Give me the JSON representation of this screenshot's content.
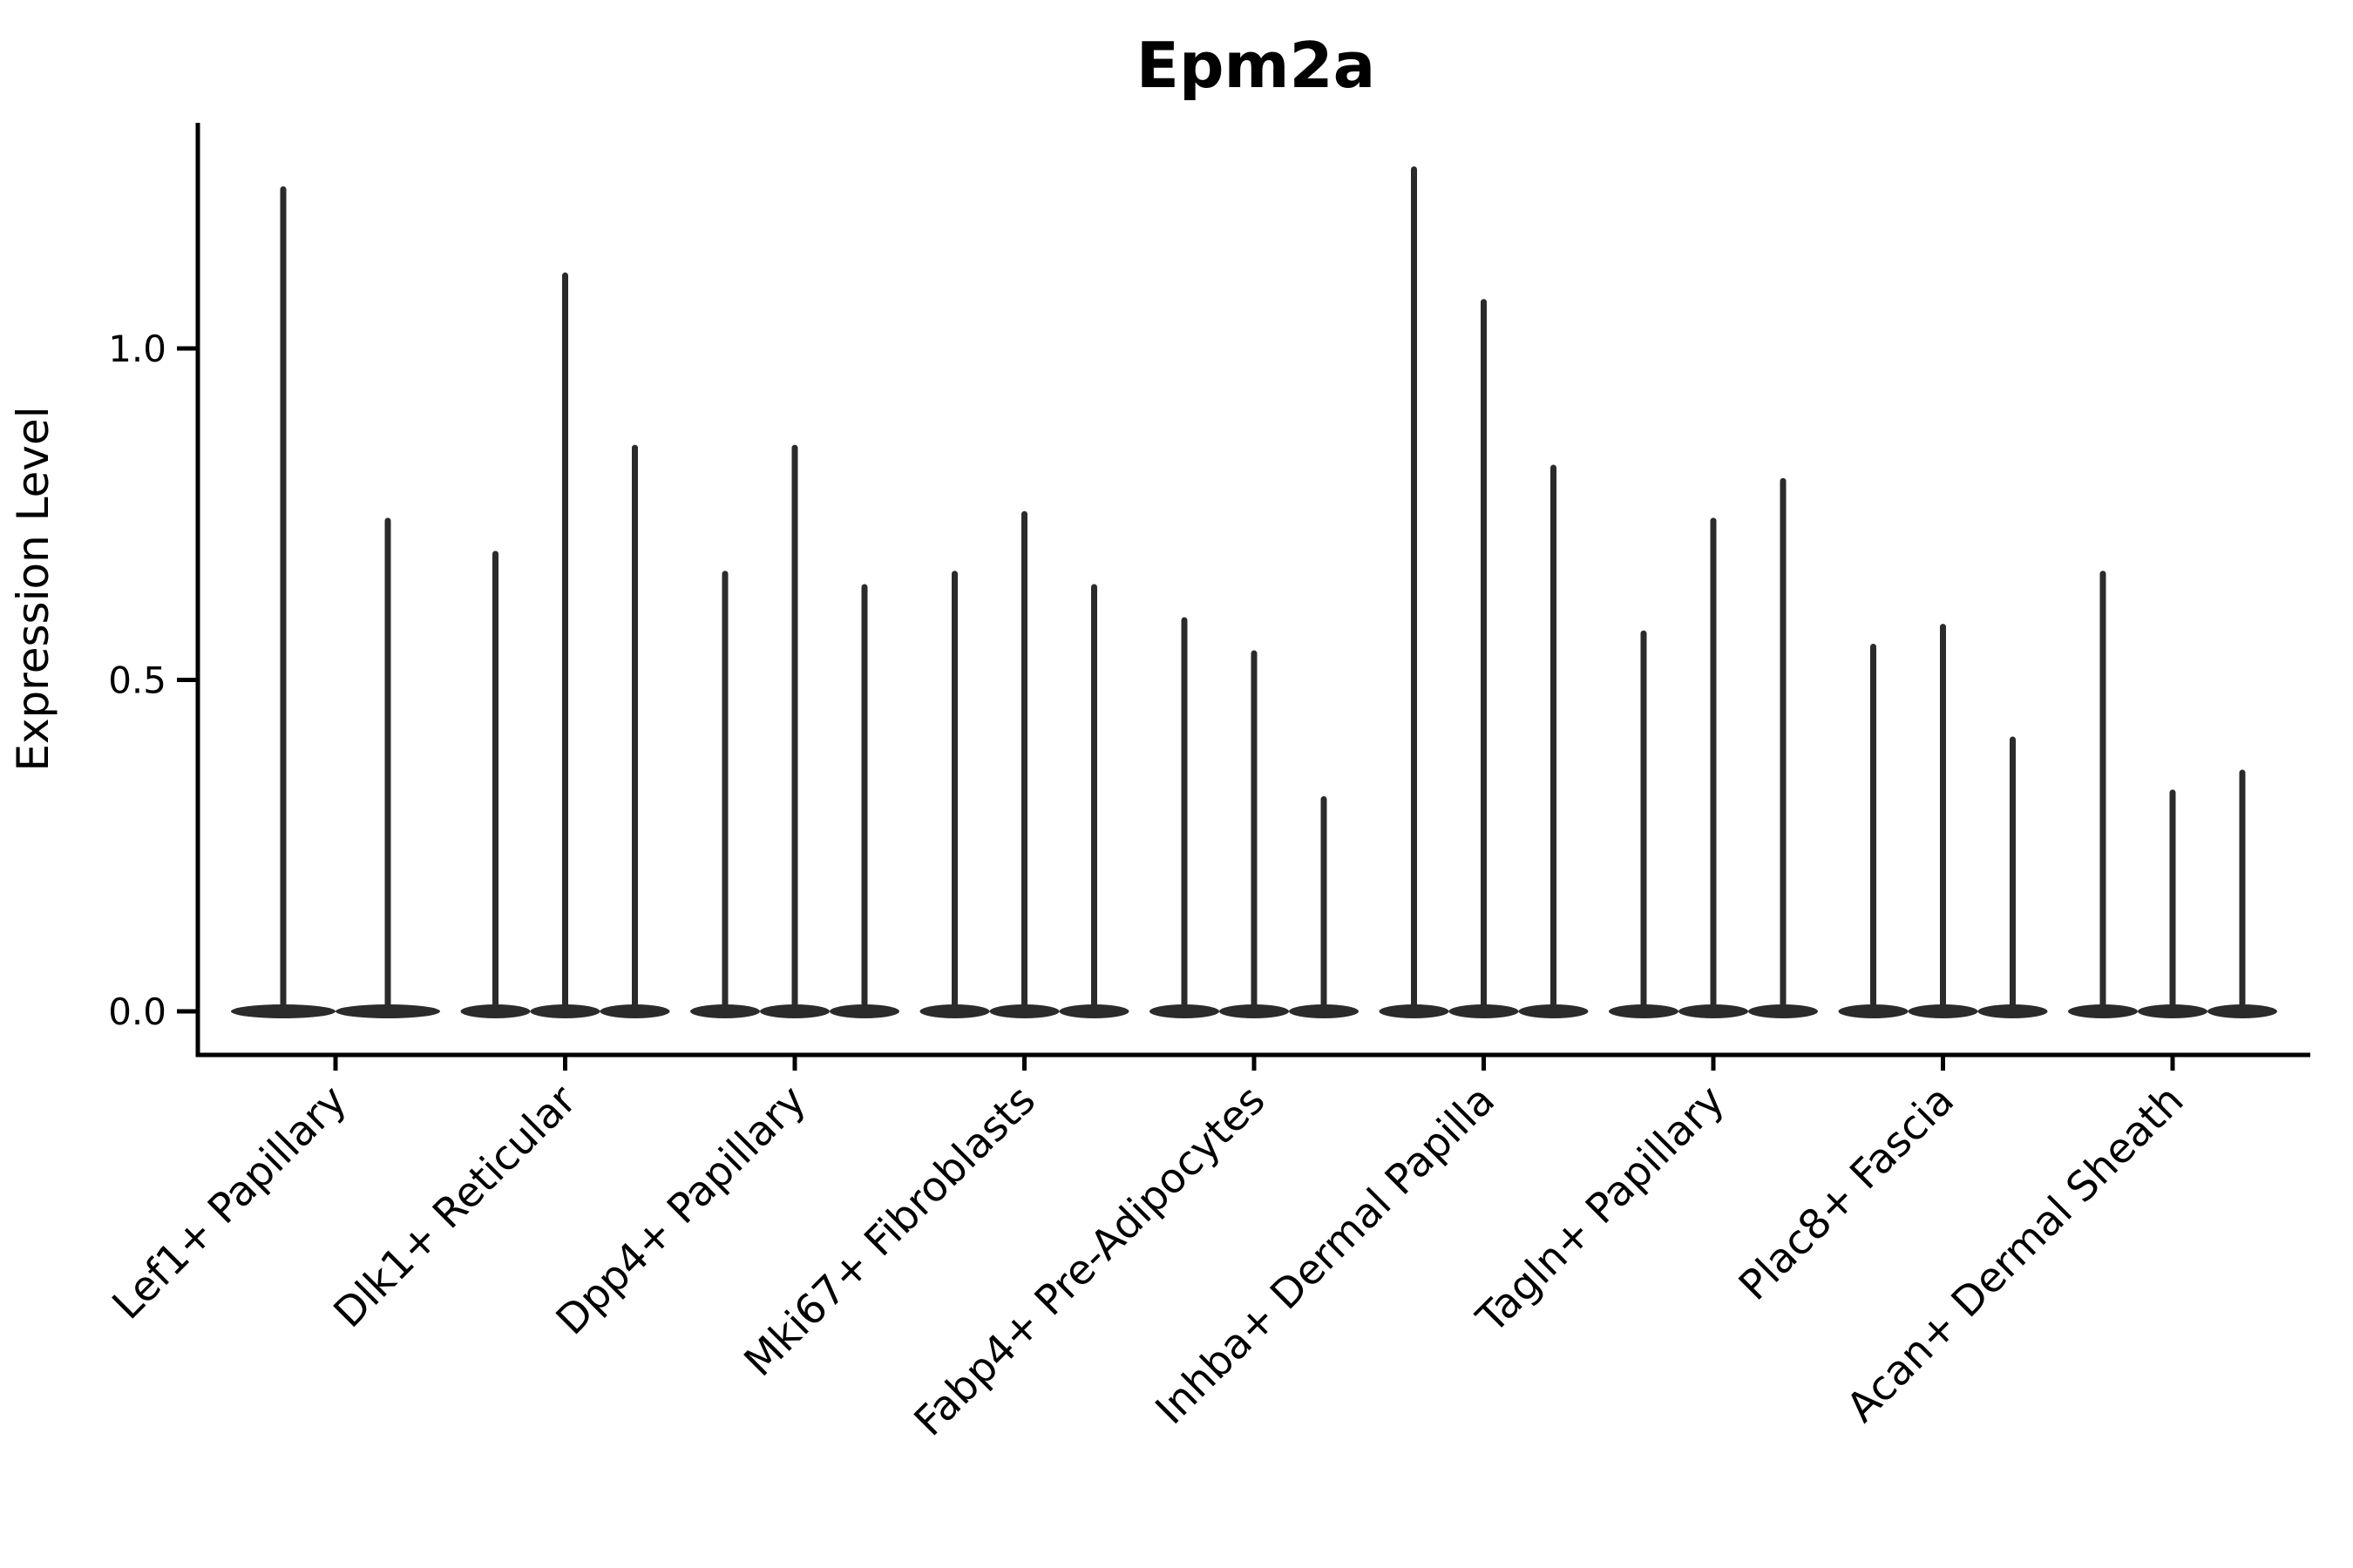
{
  "title": "Epm2a",
  "y_axis": {
    "label": "Expression Level",
    "tick_labels": [
      "0.0",
      "0.5",
      "1.0"
    ]
  },
  "x_axis": {
    "categories": [
      "Lef1+ Papillary",
      "Dlk1+ Reticular",
      "Dpp4+ Papillary",
      "Mki67+ Fibroblasts",
      "Fabp4+ Pre-Adipocytes",
      "Inhba+ Dermal Papilla",
      "Tagln+ Papillary",
      "Plac8+ Fascia",
      "Acan+ Dermal Sheath"
    ]
  },
  "chart_data": {
    "type": "violin",
    "title": "Epm2a",
    "xlabel": "",
    "ylabel": "Expression Level",
    "ylim": [
      -0.07,
      1.34
    ],
    "yticks": [
      0.0,
      0.5,
      1.0
    ],
    "ytick_labels": [
      "0.0",
      "0.5",
      "1.0"
    ],
    "grid": false,
    "legend_position": "none",
    "categories": [
      "Lef1+ Papillary",
      "Dlk1+ Reticular",
      "Dpp4+ Papillary",
      "Mki67+ Fibroblasts",
      "Fabp4+ Pre-Adipocytes",
      "Inhba+ Dermal Papilla",
      "Tagln+ Papillary",
      "Plac8+ Fascia",
      "Acan+ Dermal Sheath"
    ],
    "series": [
      {
        "category": "Lef1+ Papillary",
        "violin_spike_maxima": [
          1.24,
          0.74
        ]
      },
      {
        "category": "Dlk1+ Reticular",
        "violin_spike_maxima": [
          0.69,
          1.11,
          0.85
        ]
      },
      {
        "category": "Dpp4+ Papillary",
        "violin_spike_maxima": [
          0.66,
          0.85,
          0.64
        ]
      },
      {
        "category": "Mki67+ Fibroblasts",
        "violin_spike_maxima": [
          0.66,
          0.75,
          0.64
        ]
      },
      {
        "category": "Fabp4+ Pre-Adipocytes",
        "violin_spike_maxima": [
          0.59,
          0.54,
          0.32
        ]
      },
      {
        "category": "Inhba+ Dermal Papilla",
        "violin_spike_maxima": [
          1.27,
          1.07,
          0.82
        ]
      },
      {
        "category": "Tagln+ Papillary",
        "violin_spike_maxima": [
          0.57,
          0.74,
          0.8
        ]
      },
      {
        "category": "Plac8+ Fascia",
        "violin_spike_maxima": [
          0.55,
          0.58,
          0.41
        ]
      },
      {
        "category": "Acan+ Dermal Sheath",
        "violin_spike_maxima": [
          0.66,
          0.33,
          0.36
        ]
      }
    ],
    "violin_baseline_value": 0.0,
    "colors": {
      "violin": "#2b2b2b",
      "axis": "#000000",
      "text": "#000000",
      "background": "#ffffff"
    }
  }
}
